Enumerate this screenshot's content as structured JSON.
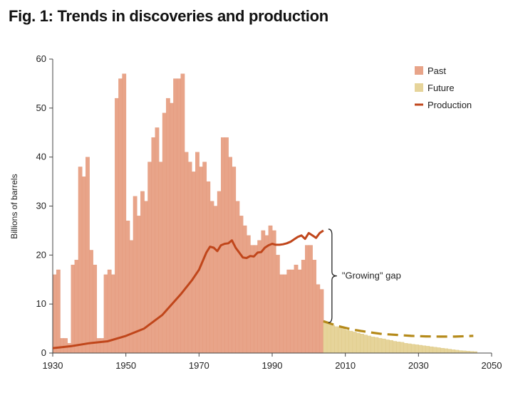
{
  "chart_data": {
    "type": "bar",
    "title": "Fig. 1: Trends in discoveries and production",
    "xlabel": "",
    "ylabel": "Billions of barrels",
    "xlim": [
      1930,
      2050
    ],
    "ylim": [
      0,
      60
    ],
    "x_ticks": [
      1930,
      1950,
      1970,
      1990,
      2010,
      2030,
      2050
    ],
    "y_ticks": [
      0,
      10,
      20,
      30,
      40,
      50,
      60
    ],
    "grid": false,
    "legend_position": "top-right",
    "colors": {
      "past": "#e8a489",
      "past_edge": "#e09374",
      "future": "#e6d49a",
      "future_edge": "#d8c27a",
      "production": "#c0461b",
      "future_production": "#b58a1a",
      "axis": "#444444"
    },
    "series": [
      {
        "name": "Past",
        "kind": "bar",
        "x": [
          1930,
          1931,
          1932,
          1933,
          1934,
          1935,
          1936,
          1937,
          1938,
          1939,
          1940,
          1941,
          1942,
          1943,
          1944,
          1945,
          1946,
          1947,
          1948,
          1949,
          1950,
          1951,
          1952,
          1953,
          1954,
          1955,
          1956,
          1957,
          1958,
          1959,
          1960,
          1961,
          1962,
          1963,
          1964,
          1965,
          1966,
          1967,
          1968,
          1969,
          1970,
          1971,
          1972,
          1973,
          1974,
          1975,
          1976,
          1977,
          1978,
          1979,
          1980,
          1981,
          1982,
          1983,
          1984,
          1985,
          1986,
          1987,
          1988,
          1989,
          1990,
          1991,
          1992,
          1993,
          1994,
          1995,
          1996,
          1997,
          1998,
          1999,
          2000,
          2001,
          2002,
          2003
        ],
        "values": [
          16,
          17,
          3,
          3,
          2,
          18,
          19,
          38,
          36,
          40,
          21,
          18,
          3,
          3,
          16,
          17,
          16,
          52,
          56,
          57,
          27,
          23,
          32,
          28,
          33,
          31,
          39,
          44,
          46,
          39,
          49,
          52,
          51,
          56,
          56,
          57,
          41,
          39,
          37,
          41,
          38,
          39,
          35,
          31,
          30,
          33,
          44,
          44,
          40,
          38,
          31,
          28,
          26,
          24,
          22,
          22,
          23,
          25,
          24,
          26,
          25,
          20,
          16,
          16,
          17,
          17,
          18,
          17,
          19,
          22,
          22,
          19,
          14,
          13
        ]
      },
      {
        "name": "Future",
        "kind": "bar",
        "x": [
          2004,
          2005,
          2006,
          2007,
          2008,
          2009,
          2010,
          2011,
          2012,
          2013,
          2014,
          2015,
          2016,
          2017,
          2018,
          2019,
          2020,
          2021,
          2022,
          2023,
          2024,
          2025,
          2026,
          2027,
          2028,
          2029,
          2030,
          2031,
          2032,
          2033,
          2034,
          2035,
          2036,
          2037,
          2038,
          2039,
          2040,
          2041,
          2042,
          2043,
          2044,
          2045
        ],
        "values": [
          6.2,
          6.0,
          5.7,
          5.4,
          5.2,
          5.0,
          4.7,
          4.5,
          4.3,
          4.1,
          3.9,
          3.7,
          3.5,
          3.3,
          3.2,
          3.0,
          2.9,
          2.7,
          2.6,
          2.4,
          2.3,
          2.2,
          2.0,
          1.9,
          1.8,
          1.7,
          1.6,
          1.5,
          1.4,
          1.3,
          1.2,
          1.1,
          1.0,
          0.9,
          0.8,
          0.7,
          0.6,
          0.5,
          0.45,
          0.4,
          0.35,
          0.3
        ]
      },
      {
        "name": "Production",
        "kind": "line",
        "x": [
          1930,
          1935,
          1940,
          1945,
          1950,
          1955,
          1960,
          1965,
          1968,
          1970,
          1972,
          1973,
          1974,
          1975,
          1976,
          1977,
          1978,
          1979,
          1980,
          1981,
          1982,
          1983,
          1984,
          1985,
          1986,
          1987,
          1988,
          1989,
          1990,
          1991,
          1992,
          1993,
          1994,
          1995,
          1996,
          1997,
          1998,
          1999,
          2000,
          2001,
          2002,
          2003,
          2004
        ],
        "values": [
          1.0,
          1.4,
          2.0,
          2.4,
          3.5,
          5.0,
          7.8,
          12.0,
          14.8,
          17.0,
          20.5,
          21.7,
          21.5,
          20.8,
          22.0,
          22.3,
          22.4,
          23.0,
          21.5,
          20.5,
          19.5,
          19.4,
          19.8,
          19.7,
          20.5,
          20.6,
          21.5,
          22.0,
          22.3,
          22.1,
          22.1,
          22.2,
          22.4,
          22.7,
          23.2,
          23.7,
          24.0,
          23.3,
          24.5,
          24.0,
          23.5,
          24.5,
          25.0
        ]
      },
      {
        "kind": "dashed-line",
        "x": [
          2004,
          2008,
          2012,
          2016,
          2020,
          2024,
          2028,
          2032,
          2036,
          2040,
          2045
        ],
        "values": [
          6.5,
          5.5,
          4.8,
          4.3,
          3.9,
          3.7,
          3.5,
          3.4,
          3.35,
          3.35,
          3.5
        ]
      }
    ],
    "annotation": {
      "text": "\"Growing\" gap",
      "x": 2004,
      "y_from": 6.5,
      "y_to": 25.0
    }
  }
}
